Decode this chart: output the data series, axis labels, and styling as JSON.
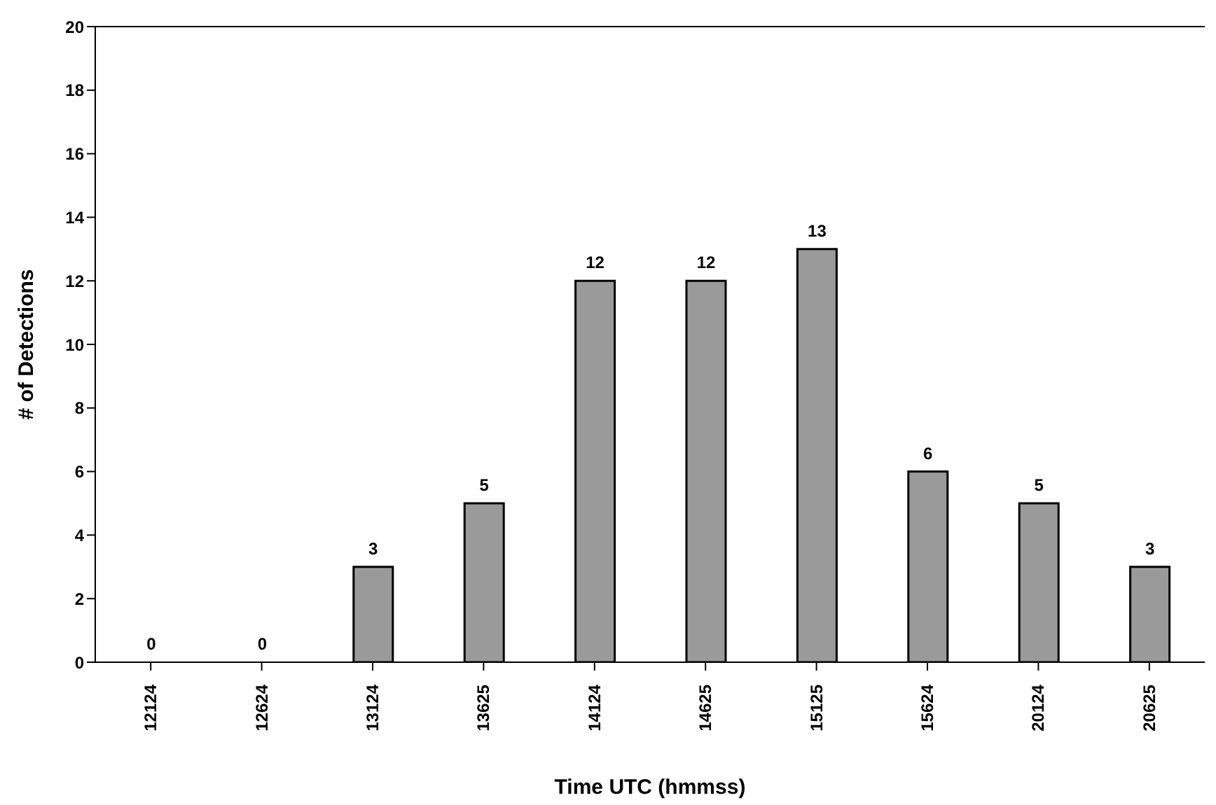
{
  "chart_data": {
    "type": "bar",
    "xlabel": "Time UTC (hmmss)",
    "ylabel": "# of Detections",
    "categories": [
      "12124",
      "12624",
      "13124",
      "13625",
      "14124",
      "14625",
      "15125",
      "15624",
      "20124",
      "20625"
    ],
    "values": [
      0,
      0,
      3,
      5,
      12,
      12,
      13,
      6,
      5,
      3
    ],
    "color": "#9a9a9a",
    "ylim": [
      0,
      20
    ],
    "yticks": [
      0,
      2,
      4,
      6,
      8,
      10,
      12,
      14,
      16,
      18,
      20
    ],
    "grid": false,
    "data_labels": true
  }
}
